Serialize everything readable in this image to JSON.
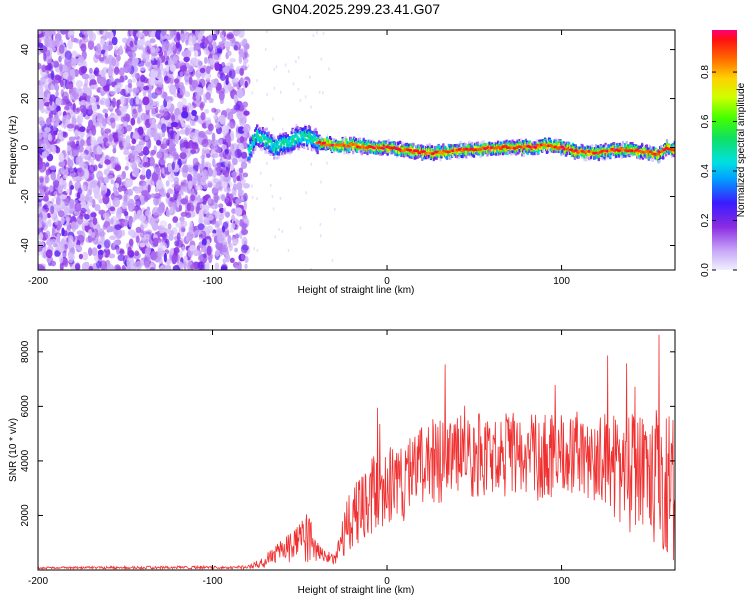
{
  "title": "GN04.2025.299.23.41.G07",
  "colors": {
    "snr_line": "#f03030",
    "axis": "#000000",
    "background": "#ffffff"
  },
  "chart_data": [
    {
      "type": "heatmap",
      "xlabel": "Height of straight line (km)",
      "ylabel": "Frequency (Hz)",
      "xlim": [
        -200,
        165
      ],
      "ylim": [
        -50,
        48
      ],
      "xticks": [
        -200,
        -100,
        0,
        100
      ],
      "yticks": [
        -40,
        -20,
        0,
        20,
        40
      ],
      "noise_region_x": [
        -200,
        -80
      ],
      "signal_start_x": -80,
      "signal_trace": {
        "x": [
          -80,
          -75,
          -70,
          -65,
          -60,
          -55,
          -50,
          -45,
          -40,
          -30,
          -20,
          -10,
          0,
          10,
          20,
          30,
          40,
          50,
          60,
          70,
          80,
          90,
          100,
          110,
          120,
          130,
          140,
          150,
          155,
          160,
          165
        ],
        "freq": [
          -2,
          5,
          3,
          0,
          2,
          3,
          5,
          4,
          2,
          1,
          1,
          0,
          0,
          -1,
          -2,
          -2,
          -1,
          -1,
          0,
          0,
          0,
          1,
          0,
          -2,
          -2,
          -1,
          -1,
          -2,
          -3,
          0,
          -1
        ]
      },
      "colorbar": {
        "label": "Normalized spectral amplitude",
        "ticks": [
          "0.0",
          "0.2",
          "0.4",
          "0.6",
          "0.8"
        ],
        "range": [
          0,
          0.97
        ]
      }
    },
    {
      "type": "line",
      "xlabel": "Height of straight line (km)",
      "ylabel": "SNR (10 * v/v)",
      "xlim": [
        -200,
        165
      ],
      "ylim": [
        0,
        8800
      ],
      "xticks": [
        -200,
        -100,
        0,
        100
      ],
      "yticks": [
        2000,
        4000,
        6000,
        8000
      ],
      "envelope": {
        "x": [
          -200,
          -80,
          -70,
          -60,
          -50,
          -45,
          -40,
          -35,
          -30,
          -25,
          -20,
          -10,
          0,
          10,
          20,
          30,
          40,
          50,
          60,
          70,
          80,
          90,
          100,
          110,
          120,
          130,
          140,
          150,
          160,
          165
        ],
        "mean": [
          80,
          100,
          300,
          700,
          1000,
          1300,
          700,
          500,
          400,
          1300,
          2000,
          2700,
          3000,
          3300,
          3700,
          4000,
          4100,
          4200,
          4100,
          4300,
          4200,
          4100,
          4300,
          4300,
          4000,
          3800,
          3500,
          3700,
          3200,
          3000
        ],
        "spread": [
          40,
          60,
          250,
          450,
          700,
          1100,
          350,
          200,
          200,
          900,
          1200,
          1400,
          1500,
          1500,
          1600,
          1600,
          1600,
          1600,
          1500,
          1600,
          1600,
          1600,
          1600,
          1500,
          1600,
          1900,
          2200,
          2500,
          2800,
          2800
        ]
      }
    }
  ]
}
